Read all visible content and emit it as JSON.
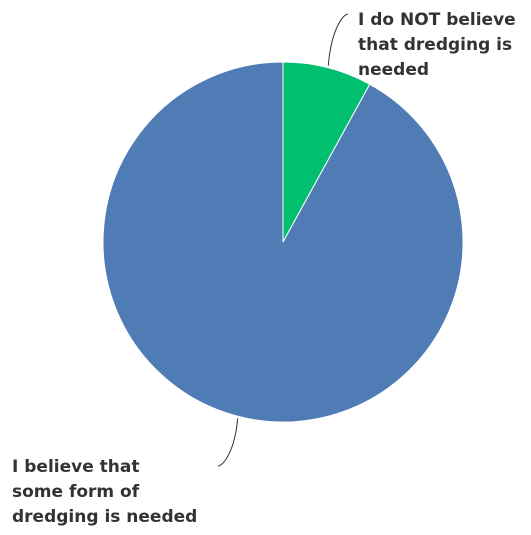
{
  "chart_data": {
    "type": "pie",
    "title": "",
    "slices": [
      {
        "label_lines": [
          "I do NOT believe",
          "that dredging is",
          "needed"
        ],
        "value": 8,
        "color": "#00BF6F"
      },
      {
        "label_lines": [
          "I believe that",
          "some form of",
          "dredging is needed"
        ],
        "value": 92,
        "color": "#507CB6"
      }
    ],
    "start_angle_deg": 0,
    "direction": "clockwise",
    "slice_border_color": "#ffffff"
  }
}
